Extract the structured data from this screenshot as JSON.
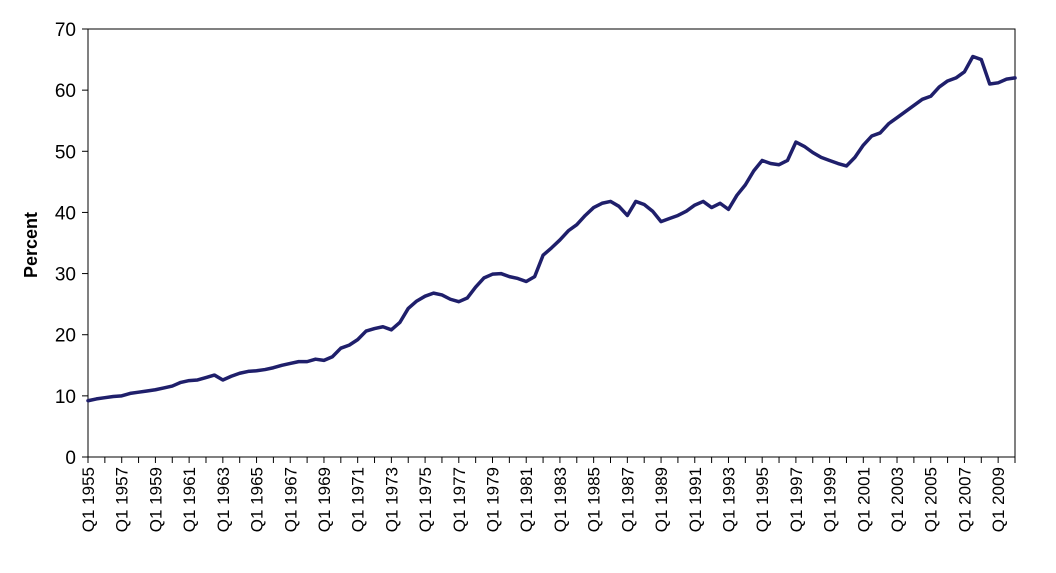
{
  "chart_data": {
    "type": "line",
    "title": "",
    "xlabel": "",
    "ylabel": "Percent",
    "ylim": [
      0,
      70
    ],
    "yticks": [
      0,
      10,
      20,
      30,
      40,
      50,
      60,
      70
    ],
    "grid": false,
    "legend": "none",
    "line_color": "#1f1f6b",
    "xlim": [
      1955.0,
      2010.0
    ],
    "xtick_labels": [
      "Q1 1955",
      "Q1 1957",
      "Q1 1959",
      "Q1 1961",
      "Q1 1963",
      "Q1 1965",
      "Q1 1967",
      "Q1 1969",
      "Q1 1971",
      "Q1 1973",
      "Q1 1975",
      "Q1 1977",
      "Q1 1979",
      "Q1 1981",
      "Q1 1983",
      "Q1 1985",
      "Q1 1987",
      "Q1 1989",
      "Q1 1991",
      "Q1 1993",
      "Q1 1995",
      "Q1 1997",
      "Q1 1999",
      "Q1 2001",
      "Q1 2003",
      "Q1 2005",
      "Q1 2007",
      "Q1 2009"
    ],
    "series": [
      {
        "x": [
          1955.0,
          1955.5,
          1956.0,
          1956.5,
          1957.0,
          1957.5,
          1958.0,
          1958.5,
          1959.0,
          1959.5,
          1960.0,
          1960.5,
          1961.0,
          1961.5,
          1962.0,
          1962.5,
          1963.0,
          1963.5,
          1964.0,
          1964.5,
          1965.0,
          1965.5,
          1966.0,
          1966.5,
          1967.0,
          1967.5,
          1968.0,
          1968.5,
          1969.0,
          1969.5,
          1970.0,
          1970.5,
          1971.0,
          1971.5,
          1972.0,
          1972.5,
          1973.0,
          1973.5,
          1974.0,
          1974.5,
          1975.0,
          1975.5,
          1976.0,
          1976.5,
          1977.0,
          1977.5,
          1978.0,
          1978.5,
          1979.0,
          1979.5,
          1980.0,
          1980.5,
          1981.0,
          1981.5,
          1982.0,
          1982.5,
          1983.0,
          1983.5,
          1984.0,
          1984.5,
          1985.0,
          1985.5,
          1986.0,
          1986.5,
          1987.0,
          1987.5,
          1988.0,
          1988.5,
          1989.0,
          1989.5,
          1990.0,
          1990.5,
          1991.0,
          1991.5,
          1992.0,
          1992.5,
          1993.0,
          1993.5,
          1994.0,
          1994.5,
          1995.0,
          1995.5,
          1996.0,
          1996.5,
          1997.0,
          1997.5,
          1998.0,
          1998.5,
          1999.0,
          1999.5,
          2000.0,
          2000.5,
          2001.0,
          2001.5,
          2002.0,
          2002.5,
          2003.0,
          2003.5,
          2004.0,
          2004.5,
          2005.0,
          2005.5,
          2006.0,
          2006.5,
          2007.0,
          2007.5,
          2008.0,
          2008.5,
          2009.0,
          2009.5,
          2010.0
        ],
        "values": [
          9.2,
          9.5,
          9.7,
          9.9,
          10.0,
          10.4,
          10.6,
          10.8,
          11.0,
          11.3,
          11.6,
          12.2,
          12.5,
          12.6,
          13.0,
          13.4,
          12.6,
          13.2,
          13.7,
          14.0,
          14.1,
          14.3,
          14.6,
          15.0,
          15.3,
          15.6,
          15.6,
          16.0,
          15.8,
          16.4,
          17.8,
          18.3,
          19.2,
          20.6,
          21.0,
          21.3,
          20.8,
          22.0,
          24.3,
          25.5,
          26.3,
          26.8,
          26.5,
          25.8,
          25.4,
          26.0,
          27.8,
          29.3,
          29.9,
          30.0,
          29.5,
          29.2,
          28.7,
          29.5,
          33.0,
          34.2,
          35.5,
          37.0,
          38.0,
          39.5,
          40.8,
          41.5,
          41.8,
          41.0,
          39.5,
          41.8,
          41.3,
          40.2,
          38.5,
          39.0,
          39.5,
          40.2,
          41.2,
          41.8,
          40.8,
          41.5,
          40.5,
          42.8,
          44.5,
          46.8,
          48.5,
          48.0,
          47.8,
          48.5,
          51.5,
          50.8,
          49.8,
          49.0,
          48.5,
          48.0,
          47.6,
          49.0,
          51.0,
          52.5,
          53.0,
          54.5,
          55.5,
          56.5,
          57.5,
          58.5,
          59.0,
          60.5,
          61.5,
          62.0,
          63.0,
          65.5,
          65.0,
          61.0,
          61.2,
          61.8,
          62.0
        ]
      }
    ]
  }
}
